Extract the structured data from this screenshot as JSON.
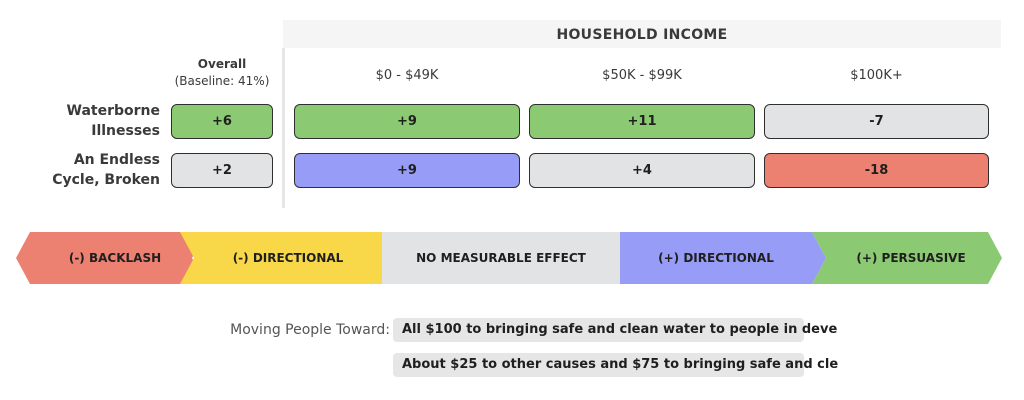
{
  "chart_data": {
    "type": "table",
    "group_title": "HOUSEHOLD INCOME",
    "overall_header": {
      "line1": "Overall",
      "line2": "(Baseline: 41%)"
    },
    "columns": [
      "$0 - $49K",
      "$50K - $99K",
      "$100K+"
    ],
    "rows": [
      {
        "label_lines": [
          "Waterborne",
          "Illnesses"
        ],
        "overall": {
          "value": "+6",
          "category": "persuasive"
        },
        "values": [
          {
            "value": "+9",
            "category": "persuasive"
          },
          {
            "value": "+11",
            "category": "persuasive"
          },
          {
            "value": "-7",
            "category": "none"
          }
        ]
      },
      {
        "label_lines": [
          "An Endless",
          "Cycle, Broken"
        ],
        "overall": {
          "value": "+2",
          "category": "none"
        },
        "values": [
          {
            "value": "+9",
            "category": "pos_directional"
          },
          {
            "value": "+4",
            "category": "none"
          },
          {
            "value": "-18",
            "category": "backlash"
          }
        ]
      }
    ],
    "legend": [
      {
        "key": "backlash",
        "label": "(-) BACKLASH",
        "color": "#ec8172"
      },
      {
        "key": "neg_directional",
        "label": "(-) DIRECTIONAL",
        "color": "#f8d749"
      },
      {
        "key": "none",
        "label": "NO MEASURABLE EFFECT",
        "color": "#e2e3e4"
      },
      {
        "key": "pos_directional",
        "label": "(+) DIRECTIONAL",
        "color": "#979cf7"
      },
      {
        "key": "persuasive",
        "label": "(+) PERSUASIVE",
        "color": "#8cc973"
      }
    ]
  },
  "moving_people": {
    "label": "Moving People Toward:",
    "options": [
      "All $100 to bringing safe and clean water to people in deve",
      "About $25 to other causes and $75 to bringing safe and cle"
    ]
  }
}
